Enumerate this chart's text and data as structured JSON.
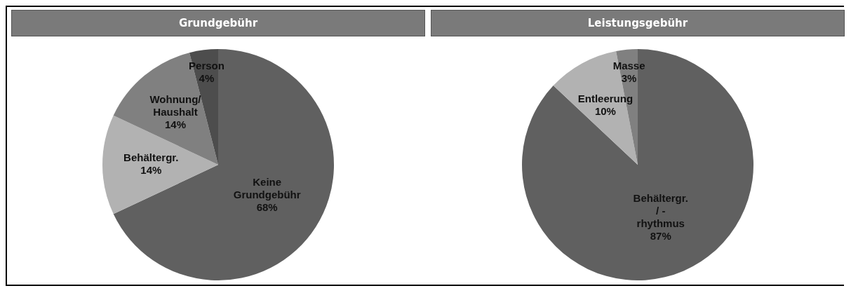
{
  "chart_data": [
    {
      "type": "pie",
      "title": "Grundgebühr",
      "categories": [
        "Keine Grundgebühr",
        "Behältergr.",
        "Wohnung/ Haushalt",
        "Person"
      ],
      "values": [
        68,
        14,
        14,
        4
      ],
      "value_labels": [
        "68%",
        "14%",
        "14%",
        "4%"
      ],
      "colors": [
        "#606060",
        "#b2b2b2",
        "#808080",
        "#4d4d4d"
      ],
      "legend": false
    },
    {
      "type": "pie",
      "title": "Leistungsgebühr",
      "categories": [
        "Behältergr. / - rhythmus",
        "Entleerung",
        "Masse"
      ],
      "values": [
        87,
        10,
        3
      ],
      "value_labels": [
        "87%",
        "10%",
        "3%"
      ],
      "colors": [
        "#606060",
        "#b2b2b2",
        "#808080"
      ],
      "legend": false
    }
  ]
}
